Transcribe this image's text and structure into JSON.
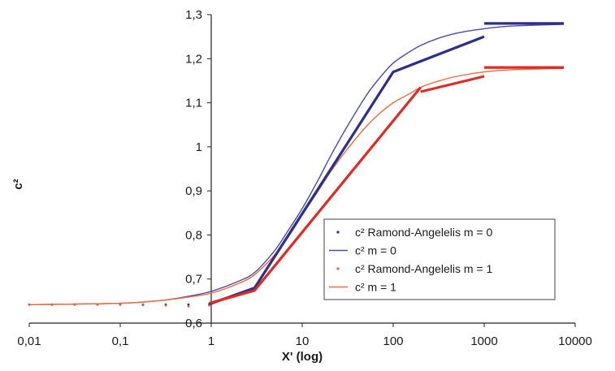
{
  "chart_data": {
    "type": "line",
    "xscale": "log",
    "xlabel": "X' (log)",
    "ylabel": "c²",
    "xlim": [
      0.01,
      10000
    ],
    "ylim": [
      0.6,
      1.3
    ],
    "x_ticks": [
      "0,01",
      "0,1",
      "1",
      "10",
      "100",
      "1000",
      "10000"
    ],
    "y_ticks": [
      "0,6",
      "0,7",
      "0,8",
      "0,9",
      "1",
      "1,1",
      "1,2",
      "1,3"
    ],
    "grid": false,
    "legend_position": "bottom-right",
    "series": [
      {
        "name": "c² Ramond-Angelelis m = 0",
        "color": "#2b2b8c",
        "style": "points",
        "points": [
          [
            0.01,
            0.642
          ],
          [
            0.0178,
            0.642
          ],
          [
            0.0316,
            0.642
          ],
          [
            0.0562,
            0.642
          ],
          [
            0.1,
            0.642
          ],
          [
            0.178,
            0.642
          ],
          [
            0.316,
            0.642
          ],
          [
            0.562,
            0.642
          ],
          [
            0.95,
            0.643
          ]
        ]
      },
      {
        "name": "c² m = 0",
        "color": "#4a4ab0",
        "style": "smooth-line",
        "points": [
          [
            0.01,
            0.642
          ],
          [
            0.1,
            0.645
          ],
          [
            0.3,
            0.652
          ],
          [
            0.6,
            0.662
          ],
          [
            1,
            0.672
          ],
          [
            2,
            0.695
          ],
          [
            3,
            0.715
          ],
          [
            5,
            0.765
          ],
          [
            7,
            0.81
          ],
          [
            10,
            0.86
          ],
          [
            15,
            0.925
          ],
          [
            20,
            0.975
          ],
          [
            30,
            1.04
          ],
          [
            50,
            1.115
          ],
          [
            70,
            1.155
          ],
          [
            100,
            1.19
          ],
          [
            150,
            1.215
          ],
          [
            200,
            1.23
          ],
          [
            300,
            1.245
          ],
          [
            500,
            1.258
          ],
          [
            1000,
            1.268
          ],
          [
            2000,
            1.274
          ],
          [
            7500,
            1.278
          ]
        ]
      },
      {
        "name": "c² Ramond-Angelelis m = 1",
        "color": "#e8672e",
        "style": "points",
        "points": [
          [
            0.01,
            0.642
          ],
          [
            0.0178,
            0.642
          ],
          [
            0.0316,
            0.642
          ],
          [
            0.0562,
            0.642
          ],
          [
            0.1,
            0.642
          ],
          [
            0.178,
            0.641
          ],
          [
            0.316,
            0.64
          ],
          [
            0.562,
            0.638
          ],
          [
            0.95,
            0.64
          ]
        ]
      },
      {
        "name": "c² m = 1",
        "color": "#f06a3a",
        "style": "smooth-line",
        "points": [
          [
            0.01,
            0.642
          ],
          [
            0.1,
            0.645
          ],
          [
            0.3,
            0.652
          ],
          [
            0.6,
            0.66
          ],
          [
            1,
            0.668
          ],
          [
            2,
            0.69
          ],
          [
            3,
            0.71
          ],
          [
            5,
            0.755
          ],
          [
            7,
            0.795
          ],
          [
            10,
            0.845
          ],
          [
            15,
            0.9
          ],
          [
            20,
            0.94
          ],
          [
            30,
            0.99
          ],
          [
            50,
            1.045
          ],
          [
            70,
            1.075
          ],
          [
            100,
            1.1
          ],
          [
            150,
            1.12
          ],
          [
            200,
            1.135
          ],
          [
            300,
            1.148
          ],
          [
            500,
            1.16
          ],
          [
            1000,
            1.17
          ],
          [
            2000,
            1.175
          ],
          [
            7500,
            1.178
          ]
        ]
      },
      {
        "color": "#2e2e8f",
        "style": "thick-line",
        "points": [
          [
            0.95,
            0.643
          ],
          [
            3,
            0.68
          ],
          [
            100,
            1.17
          ],
          [
            1000,
            1.25
          ]
        ]
      },
      {
        "color": "#2e2e8f",
        "style": "thick-line",
        "points": [
          [
            3,
            0.68
          ],
          [
            3,
            0.675
          ]
        ]
      },
      {
        "color": "#2e2e8f",
        "style": "thick-line",
        "points": [
          [
            1000,
            1.28
          ],
          [
            7500,
            1.28
          ]
        ]
      },
      {
        "color": "#e12a23",
        "style": "thick-line",
        "points": [
          [
            0.95,
            0.645
          ],
          [
            3,
            0.674
          ],
          [
            200,
            1.135
          ]
        ]
      },
      {
        "color": "#e12a23",
        "style": "thick-line",
        "points": [
          [
            200,
            1.125
          ],
          [
            1000,
            1.16
          ]
        ]
      },
      {
        "color": "#e12a23",
        "style": "thick-line",
        "points": [
          [
            1000,
            1.18
          ],
          [
            7500,
            1.18
          ]
        ]
      }
    ]
  },
  "legend": {
    "items": [
      {
        "label": "c² Ramond-Angelelis m = 0",
        "color": "#2b2b8c",
        "marker": "point"
      },
      {
        "label": "c² m = 0",
        "color": "#4a4ab0",
        "marker": "line"
      },
      {
        "label": "c² Ramond-Angelelis m = 1",
        "color": "#e8672e",
        "marker": "point"
      },
      {
        "label": "c² m = 1",
        "color": "#f06a3a",
        "marker": "line"
      }
    ]
  }
}
